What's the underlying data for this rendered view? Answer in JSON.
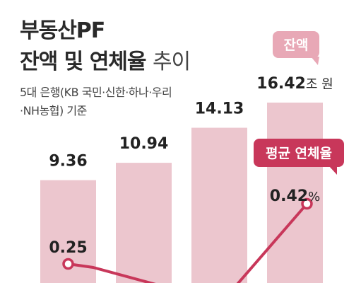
{
  "title": {
    "line1": "부동산PF",
    "line2_bold": "잔액 및 연체율",
    "line2_light": "추이"
  },
  "source": "5대 은행(KB 국민·신한·하나·우리·NH농협) 기준",
  "legend": {
    "balance_label": "잔액",
    "rate_label": "평균 연체율"
  },
  "colors": {
    "bar": "#ecc6ce",
    "line": "#c8375a",
    "balance_bubble": "#e8a8b6",
    "rate_bubble": "#c8375a"
  },
  "chart_data": {
    "type": "bar",
    "series": [
      {
        "name": "잔액",
        "unit": "조 원",
        "values": [
          9.36,
          10.94,
          14.13,
          16.42
        ],
        "labels": [
          "9.36",
          "10.94",
          "14.13",
          "16.42"
        ]
      },
      {
        "name": "평균 연체율",
        "type": "line",
        "unit": "%",
        "points": [
          {
            "index": 0,
            "value": 0.25,
            "label": "0.25"
          },
          {
            "index": 3,
            "value": 0.42,
            "label": "0.42"
          }
        ]
      }
    ]
  }
}
